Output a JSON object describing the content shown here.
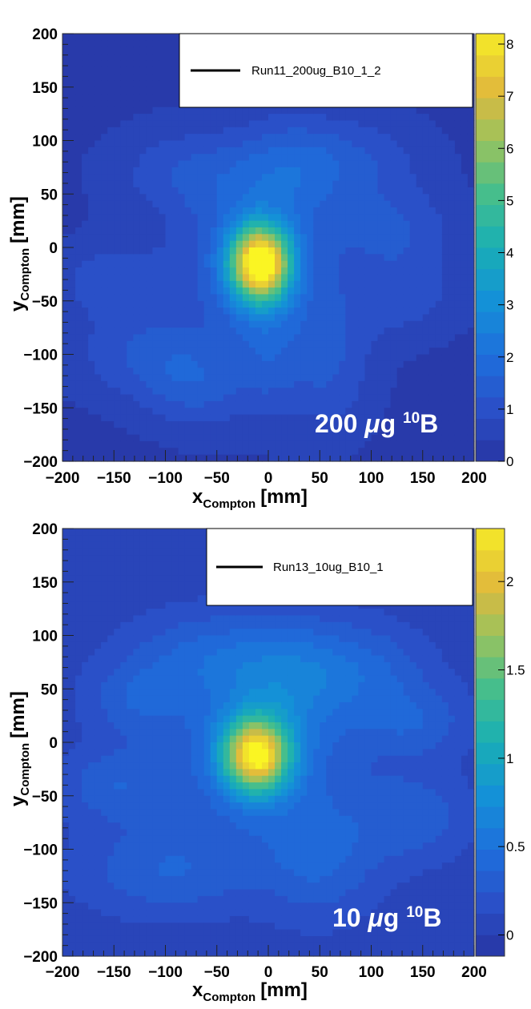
{
  "chart_data": [
    {
      "type": "heatmap",
      "legend": "Run11_200ug_B10_1_2",
      "annotation": {
        "amount": "200",
        "unit": "μg",
        "isotope_mass": "10",
        "element": "B"
      },
      "xlabel": {
        "main": "x",
        "sub": "Compton",
        "unit": "[mm]"
      },
      "ylabel": {
        "main": "y",
        "sub": "Compton",
        "unit": "[mm]"
      },
      "xlim": [
        -200,
        200
      ],
      "ylim": [
        -200,
        200
      ],
      "xticks": [
        "−200",
        "−150",
        "−100",
        "−50",
        "0",
        "50",
        "100",
        "150",
        "200"
      ],
      "yticks": [
        "200",
        "150",
        "100",
        "50",
        "0",
        "−50",
        "−100",
        "−150",
        "−200"
      ],
      "zlim": [
        0,
        8.2
      ],
      "colorbar_ticks": [
        {
          "value": 0,
          "label": "0"
        },
        {
          "value": 1,
          "label": "1"
        },
        {
          "value": 2,
          "label": "2"
        },
        {
          "value": 3,
          "label": "3"
        },
        {
          "value": 4,
          "label": "4"
        },
        {
          "value": 5,
          "label": "5"
        },
        {
          "value": 6,
          "label": "6"
        },
        {
          "value": 7,
          "label": "7"
        },
        {
          "value": 8,
          "label": "8"
        }
      ],
      "background": 0.3,
      "hotspot": {
        "x": -8,
        "y": -15,
        "peak": 8.0
      },
      "blobs": [
        {
          "x": -8,
          "y": -15,
          "sx": 20,
          "sy": 24,
          "value": 7.7
        },
        {
          "x": -10,
          "y": -12,
          "sx": 50,
          "sy": 50,
          "value": 1.6
        },
        {
          "x": -70,
          "y": 70,
          "sx": 55,
          "sy": 30,
          "value": 0.9
        },
        {
          "x": 80,
          "y": 80,
          "sx": 50,
          "sy": 30,
          "value": 0.9
        },
        {
          "x": 20,
          "y": 75,
          "sx": 35,
          "sy": 35,
          "value": 0.8
        },
        {
          "x": -150,
          "y": -30,
          "sx": 40,
          "sy": 25,
          "value": 0.8
        },
        {
          "x": -120,
          "y": -100,
          "sx": 50,
          "sy": 30,
          "value": 0.9
        },
        {
          "x": -70,
          "y": -130,
          "sx": 35,
          "sy": 30,
          "value": 0.9
        },
        {
          "x": 60,
          "y": -110,
          "sx": 30,
          "sy": 45,
          "value": 0.9
        },
        {
          "x": 130,
          "y": -40,
          "sx": 40,
          "sy": 30,
          "value": 0.8
        },
        {
          "x": 0,
          "y": -100,
          "sx": 25,
          "sy": 45,
          "value": 0.8
        },
        {
          "x": 120,
          "y": 20,
          "sx": 45,
          "sy": 25,
          "value": 0.8
        }
      ]
    },
    {
      "type": "heatmap",
      "legend": "Run13_10ug_B10_1",
      "annotation": {
        "amount": "10",
        "unit": "μg",
        "isotope_mass": "10",
        "element": "B"
      },
      "xlabel": {
        "main": "x",
        "sub": "Compton",
        "unit": "[mm]"
      },
      "ylabel": {
        "main": "y",
        "sub": "Compton",
        "unit": "[mm]"
      },
      "xlim": [
        -200,
        200
      ],
      "ylim": [
        -200,
        200
      ],
      "xticks": [
        "−200",
        "−150",
        "−100",
        "−50",
        "0",
        "50",
        "100",
        "150",
        "200"
      ],
      "yticks": [
        "200",
        "150",
        "100",
        "50",
        "0",
        "−50",
        "−100",
        "−150",
        "−200"
      ],
      "zlim": [
        -0.12,
        2.3
      ],
      "colorbar_ticks": [
        {
          "value": 0,
          "label": "0"
        },
        {
          "value": 0.5,
          "label": "0.5"
        },
        {
          "value": 1,
          "label": "1"
        },
        {
          "value": 1.5,
          "label": "1.5"
        },
        {
          "value": 2,
          "label": "2"
        }
      ],
      "background": 0.05,
      "hotspot": {
        "x": -12,
        "y": -12,
        "peak": 2.1
      },
      "blobs": [
        {
          "x": -12,
          "y": -12,
          "sx": 22,
          "sy": 24,
          "value": 1.95
        },
        {
          "x": -10,
          "y": -10,
          "sx": 60,
          "sy": 55,
          "value": 0.45
        },
        {
          "x": -60,
          "y": 80,
          "sx": 55,
          "sy": 30,
          "value": 0.3
        },
        {
          "x": 90,
          "y": 70,
          "sx": 45,
          "sy": 30,
          "value": 0.3
        },
        {
          "x": 140,
          "y": 20,
          "sx": 40,
          "sy": 25,
          "value": 0.28
        },
        {
          "x": -150,
          "y": -40,
          "sx": 35,
          "sy": 25,
          "value": 0.28
        },
        {
          "x": -100,
          "y": -120,
          "sx": 60,
          "sy": 30,
          "value": 0.3
        },
        {
          "x": 50,
          "y": -110,
          "sx": 40,
          "sy": 40,
          "value": 0.3
        },
        {
          "x": 140,
          "y": -70,
          "sx": 40,
          "sy": 30,
          "value": 0.28
        },
        {
          "x": 20,
          "y": 60,
          "sx": 40,
          "sy": 40,
          "value": 0.3
        },
        {
          "x": -130,
          "y": 40,
          "sx": 35,
          "sy": 25,
          "value": 0.25
        }
      ]
    }
  ]
}
